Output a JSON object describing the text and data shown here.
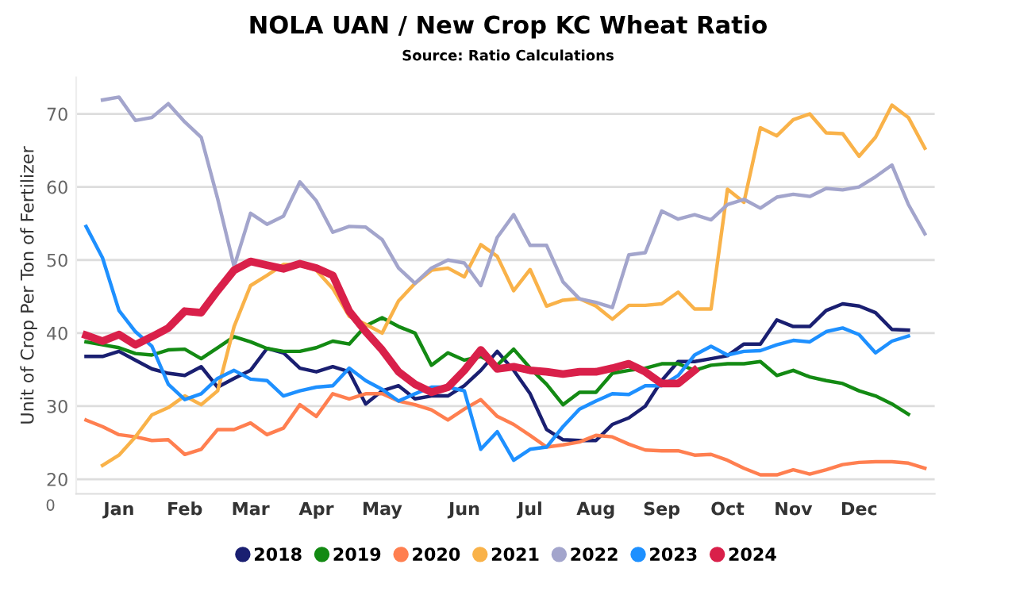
{
  "chart_data": {
    "type": "line",
    "title": "NOLA UAN / New Crop KC Wheat Ratio",
    "subtitle": "Source: Ratio Calculations",
    "ylabel": "Unit of Crop Per Ton of Fertilizer",
    "annotations": [
      "0"
    ],
    "categories": [
      null,
      null,
      "Jan",
      null,
      null,
      null,
      "Feb",
      null,
      null,
      null,
      "Mar",
      null,
      null,
      null,
      "Apr",
      null,
      null,
      null,
      "May",
      null,
      null,
      null,
      null,
      "Jun",
      null,
      null,
      null,
      "Jul",
      null,
      null,
      null,
      "Aug",
      null,
      null,
      null,
      "Sep",
      null,
      null,
      null,
      "Oct",
      null,
      null,
      null,
      "Nov",
      null,
      null,
      null,
      "Dec",
      null,
      null,
      null,
      null
    ],
    "ylim": [
      18,
      75
    ],
    "yticks": [
      20,
      30,
      40,
      50,
      60,
      70
    ],
    "grid": "y",
    "legend": "bottom",
    "marker": "none",
    "line_style": "solid",
    "series": [
      {
        "name": "2018",
        "color": "#1a1f71",
        "values": [
          36.8,
          36.8,
          37.5,
          36.3,
          35.1,
          34.5,
          34.2,
          35.4,
          32.6,
          33.8,
          34.9,
          37.9,
          37.3,
          35.2,
          34.7,
          35.4,
          34.7,
          30.3,
          32.1,
          32.8,
          31,
          31.4,
          31.4,
          32.8,
          34.9,
          37.5,
          34.9,
          31.7,
          26.8,
          25.4,
          25.3,
          25.3,
          27.5,
          28.4,
          30,
          33.5,
          36.1,
          36.1,
          36.5,
          36.9,
          38.5,
          38.5,
          41.8,
          40.9,
          40.9,
          43.1,
          44,
          43.7,
          42.8,
          40.5,
          40.4,
          null
        ]
      },
      {
        "name": "2019",
        "color": "#138a13",
        "values": [
          38.8,
          38.4,
          38,
          37.2,
          37,
          37.7,
          37.8,
          36.5,
          38,
          39.5,
          38.8,
          37.9,
          37.5,
          37.5,
          38,
          38.9,
          38.5,
          41,
          42.1,
          40.9,
          40,
          35.6,
          37.3,
          36.3,
          36.8,
          35.6,
          37.8,
          35.2,
          33,
          30.2,
          31.9,
          31.9,
          34.5,
          34.9,
          35.2,
          35.8,
          35.8,
          34.9,
          35.6,
          35.8,
          35.8,
          36.1,
          34.2,
          34.9,
          34,
          33.5,
          33.1,
          32.1,
          31.4,
          30.3,
          28.9,
          null
        ]
      },
      {
        "name": "2020",
        "color": "#ff7f50",
        "values": [
          28.1,
          27.2,
          26.1,
          25.8,
          25.3,
          25.4,
          23.4,
          24.1,
          26.8,
          26.8,
          27.7,
          26.1,
          27,
          30.2,
          28.6,
          31.7,
          31,
          31.7,
          31.7,
          30.7,
          30.2,
          29.5,
          28.1,
          29.6,
          30.9,
          28.6,
          27.5,
          26,
          24.4,
          24.7,
          25.1,
          26,
          25.8,
          24.8,
          24,
          23.9,
          23.9,
          23.3,
          23.4,
          22.6,
          21.5,
          20.6,
          20.6,
          21.3,
          20.7,
          21.3,
          22,
          22.3,
          22.4,
          22.4,
          22.2,
          21.5
        ]
      },
      {
        "name": "2021",
        "color": "#f9b249",
        "values": [
          null,
          21.9,
          23.3,
          25.8,
          28.8,
          29.8,
          31.4,
          30.2,
          32.1,
          40.9,
          46.5,
          47.9,
          49.4,
          49.3,
          48.6,
          46.1,
          42.3,
          41.2,
          40,
          44.4,
          46.8,
          48.6,
          48.9,
          47.7,
          52.1,
          50.5,
          45.8,
          48.7,
          43.7,
          44.5,
          44.7,
          43.7,
          41.9,
          43.8,
          43.8,
          44,
          45.6,
          43.3,
          43.3,
          59.7,
          57.9,
          68.1,
          67,
          69.2,
          70,
          67.4,
          67.3,
          64.2,
          66.8,
          71.2,
          69.5,
          65.3
        ]
      },
      {
        "name": "2022",
        "color": "#a3a5cc",
        "values": [
          null,
          71.9,
          72.3,
          69.1,
          69.5,
          71.4,
          68.9,
          66.8,
          58.4,
          49.1,
          56.4,
          54.9,
          56,
          60.7,
          58.1,
          53.8,
          54.6,
          54.5,
          52.8,
          48.9,
          46.8,
          48.9,
          50,
          49.6,
          46.5,
          53.1,
          56.2,
          52,
          52,
          47,
          44.7,
          44.2,
          43.5,
          50.7,
          51,
          56.7,
          55.6,
          56.2,
          55.5,
          57.6,
          58.3,
          57.1,
          58.6,
          59,
          58.7,
          59.8,
          59.6,
          60,
          61.4,
          63,
          57.6,
          53.6
        ]
      },
      {
        "name": "2023",
        "color": "#1e90ff",
        "values": [
          54.6,
          50.3,
          43.1,
          40.2,
          38.2,
          33,
          30.9,
          31.7,
          33.8,
          34.9,
          33.7,
          33.5,
          31.4,
          32.1,
          32.6,
          32.8,
          35.2,
          33.5,
          32.3,
          30.7,
          31.7,
          32.6,
          32.6,
          32.1,
          24.1,
          26.5,
          22.6,
          24.1,
          24.4,
          27.2,
          29.6,
          30.7,
          31.7,
          31.6,
          32.8,
          32.8,
          34.2,
          37,
          38.2,
          37,
          37.5,
          37.6,
          38.4,
          39,
          38.8,
          40.2,
          40.7,
          39.8,
          37.3,
          38.9,
          39.6,
          null
        ]
      },
      {
        "name": "2024",
        "color": "#d9204a",
        "values": [
          39.7,
          38.9,
          39.8,
          38.4,
          39.5,
          40.7,
          43,
          42.8,
          45.8,
          48.6,
          49.8,
          49.3,
          48.8,
          49.5,
          48.9,
          47.9,
          43,
          40.2,
          37.7,
          34.7,
          33,
          31.9,
          32.6,
          34.9,
          37.7,
          35.1,
          35.4,
          34.9,
          34.7,
          34.4,
          34.7,
          34.7,
          35.2,
          35.8,
          34.7,
          33.1,
          33.1,
          34.9,
          null,
          null,
          null,
          null,
          null,
          null,
          null,
          null,
          null,
          null,
          null,
          null,
          null,
          null
        ]
      }
    ]
  }
}
